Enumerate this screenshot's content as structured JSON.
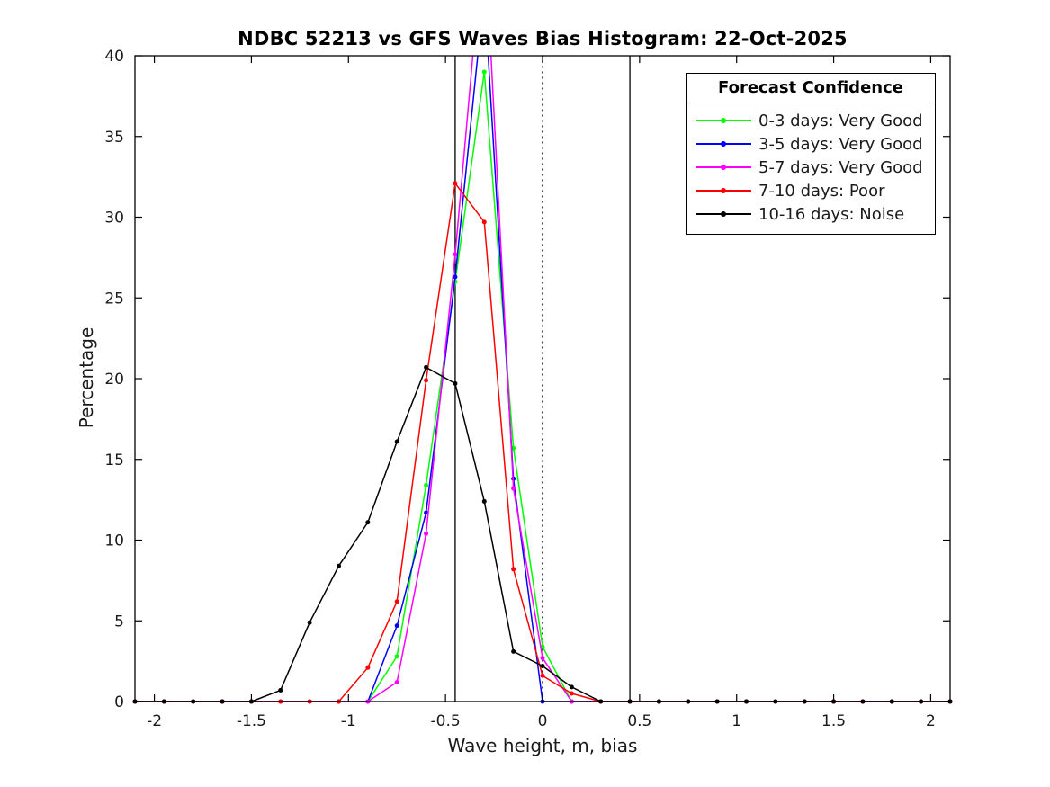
{
  "legend": {
    "title": "Forecast Confidence"
  },
  "chart_data": {
    "type": "line",
    "title": "NDBC 52213 vs GFS Waves Bias Histogram: 22-Oct-2025",
    "xlabel": "Wave height, m, bias",
    "ylabel": "Percentage",
    "xlim": [
      -2.1,
      2.1
    ],
    "ylim": [
      0,
      40
    ],
    "grid": false,
    "legend_position": "top-right",
    "x_ticks": [
      -2,
      -1.5,
      -1,
      -0.5,
      0,
      0.5,
      1,
      1.5,
      2
    ],
    "x_tick_labels": [
      "-2",
      "-1.5",
      "-1",
      "-0.5",
      "0",
      "0.5",
      "1",
      "1.5",
      "2"
    ],
    "y_ticks": [
      0,
      5,
      10,
      15,
      20,
      25,
      30,
      35,
      40
    ],
    "y_tick_labels": [
      "0",
      "5",
      "10",
      "15",
      "20",
      "25",
      "30",
      "35",
      "40"
    ],
    "bin_centers": [
      -2.1,
      -1.95,
      -1.8,
      -1.65,
      -1.5,
      -1.35,
      -1.2,
      -1.05,
      -0.9,
      -0.75,
      -0.6,
      -0.45,
      -0.3,
      -0.15,
      0,
      0.15,
      0.3,
      0.45,
      0.6,
      0.75,
      0.9,
      1.05,
      1.2,
      1.35,
      1.5,
      1.65,
      1.8,
      1.95,
      2.1
    ],
    "series": [
      {
        "name": "0-3 days",
        "label": "0-3 days: Very Good",
        "confidence": "Very Good",
        "color": "#00ff00",
        "clipped_above_ymax": false,
        "values": [
          0,
          0,
          0,
          0,
          0,
          0,
          0,
          0,
          0,
          2.8,
          13.4,
          26.0,
          39.0,
          15.7,
          3.4,
          0,
          0,
          0,
          0,
          0,
          0,
          0,
          0,
          0,
          0,
          0,
          0,
          0,
          0
        ]
      },
      {
        "name": "3-5 days",
        "label": "3-5 days: Very Good",
        "confidence": "Very Good",
        "color": "#0000ff",
        "clipped_above_ymax": true,
        "values": [
          0,
          0,
          0,
          0,
          0,
          0,
          0,
          0,
          0,
          4.7,
          11.7,
          26.3,
          44.0,
          13.8,
          0,
          0,
          0,
          0,
          0,
          0,
          0,
          0,
          0,
          0,
          0,
          0,
          0,
          0,
          0
        ]
      },
      {
        "name": "5-7 days",
        "label": "5-7 days: Very Good",
        "confidence": "Very Good",
        "color": "#ff00ff",
        "clipped_above_ymax": true,
        "values": [
          0,
          0,
          0,
          0,
          0,
          0,
          0,
          0,
          0,
          1.2,
          10.4,
          27.7,
          48.0,
          13.2,
          2.7,
          0,
          0,
          0,
          0,
          0,
          0,
          0,
          0,
          0,
          0,
          0,
          0,
          0,
          0
        ]
      },
      {
        "name": "7-10 days",
        "label": "7-10 days: Poor",
        "confidence": "Poor",
        "color": "#ff0000",
        "clipped_above_ymax": false,
        "values": [
          0,
          0,
          0,
          0,
          0,
          0,
          0,
          0,
          2.1,
          6.2,
          19.9,
          32.1,
          29.7,
          8.2,
          1.6,
          0.5,
          0,
          0,
          0,
          0,
          0,
          0,
          0,
          0,
          0,
          0,
          0,
          0,
          0
        ]
      },
      {
        "name": "10-16 days",
        "label": "10-16 days: Noise",
        "confidence": "Noise",
        "color": "#000000",
        "clipped_above_ymax": false,
        "values": [
          0,
          0,
          0,
          0,
          0,
          0.7,
          4.9,
          8.4,
          11.1,
          16.1,
          20.7,
          19.7,
          12.4,
          3.1,
          2.2,
          0.9,
          0,
          0,
          0,
          0,
          0,
          0,
          0,
          0,
          0,
          0,
          0,
          0,
          0
        ]
      }
    ],
    "reference_lines": [
      {
        "x": -0.45,
        "style": "solid",
        "color": "#000000"
      },
      {
        "x": 0,
        "style": "dotted",
        "color": "#000000"
      },
      {
        "x": 0.45,
        "style": "solid",
        "color": "#000000"
      }
    ]
  }
}
